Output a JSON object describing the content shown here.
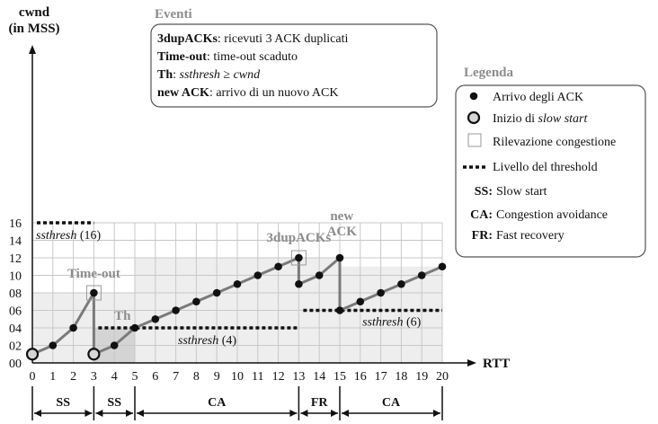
{
  "chart_data": {
    "type": "line",
    "ylabel_lines": [
      "cwnd",
      "(in MSS)"
    ],
    "xlabel": "RTT",
    "x_ticks": [
      "0",
      "1",
      "2",
      "3",
      "4",
      "5",
      "6",
      "7",
      "8",
      "9",
      "10",
      "11",
      "12",
      "13",
      "14",
      "15",
      "16",
      "17",
      "18",
      "19",
      "20"
    ],
    "y_ticks": [
      "00",
      "02",
      "04",
      "06",
      "08",
      "10",
      "12",
      "14",
      "16"
    ],
    "xlim": [
      0,
      20
    ],
    "ylim": [
      0,
      16
    ],
    "grid": true,
    "series_points": [
      {
        "x": 0,
        "y": 1,
        "start": true
      },
      {
        "x": 1,
        "y": 2
      },
      {
        "x": 2,
        "y": 4
      },
      {
        "x": 3,
        "y": 8
      },
      {
        "x": 3,
        "y": 1,
        "start": true
      },
      {
        "x": 4,
        "y": 2
      },
      {
        "x": 5,
        "y": 4
      },
      {
        "x": 6,
        "y": 5
      },
      {
        "x": 7,
        "y": 6
      },
      {
        "x": 8,
        "y": 7
      },
      {
        "x": 9,
        "y": 8
      },
      {
        "x": 10,
        "y": 9
      },
      {
        "x": 11,
        "y": 10
      },
      {
        "x": 12,
        "y": 11
      },
      {
        "x": 13,
        "y": 12
      },
      {
        "x": 13,
        "y": 9
      },
      {
        "x": 14,
        "y": 10
      },
      {
        "x": 15,
        "y": 12
      },
      {
        "x": 15,
        "y": 6
      },
      {
        "x": 16,
        "y": 7
      },
      {
        "x": 17,
        "y": 8
      },
      {
        "x": 18,
        "y": 9
      },
      {
        "x": 19,
        "y": 10
      },
      {
        "x": 20,
        "y": 11
      }
    ],
    "congestion_events": [
      {
        "x": 3,
        "y": 8,
        "label": "Time-out"
      },
      {
        "x": 13,
        "y": 12,
        "label": "3dupACKs"
      }
    ],
    "thresholds": [
      {
        "x_from": 0,
        "x_to": 3,
        "y": 16,
        "label_prefix": "ssthresh",
        "label_value": "(16)"
      },
      {
        "x_from": 3,
        "x_to": 13,
        "y": 4,
        "label_prefix": "ssthresh",
        "label_value": "(4)"
      },
      {
        "x_from": 13,
        "x_to": 20,
        "y": 6,
        "label_prefix": "ssthresh",
        "label_value": "(6)"
      }
    ],
    "annotations": [
      {
        "text": "Th",
        "x": 4.4,
        "y": 4.9
      },
      {
        "text_lines": [
          "new",
          "ACK"
        ],
        "x": 15.1,
        "y": 12.2
      }
    ],
    "phases": [
      {
        "from": 0,
        "to": 3,
        "label": "SS"
      },
      {
        "from": 3,
        "to": 5,
        "label": "SS"
      },
      {
        "from": 5,
        "to": 13,
        "label": "CA"
      },
      {
        "from": 13,
        "to": 15,
        "label": "FR"
      },
      {
        "from": 15,
        "to": 20,
        "label": "CA"
      }
    ],
    "eventi": {
      "title": "Eventi",
      "items": [
        {
          "term": "3dupACKs",
          "desc": ": ricevuti 3 ACK duplicati"
        },
        {
          "term": "Time-out",
          "desc": ": time-out scaduto"
        },
        {
          "term": "Th",
          "desc": ": ssthresh ≥ cwnd"
        },
        {
          "term": "new ACK",
          "desc": ": arrivo di un nuovo ACK"
        }
      ]
    },
    "legenda": {
      "title": "Legenda",
      "items": [
        {
          "marker": "dot",
          "text": "Arrivo degli ACK"
        },
        {
          "marker": "ring",
          "text_plain": "Inizio di ",
          "text_italic": "slow start"
        },
        {
          "marker": "square",
          "text": "Rilevazione congestione"
        },
        {
          "marker": "dash",
          "text": "Livello del threshold"
        },
        {
          "abbr": "SS:",
          "text": "Slow start"
        },
        {
          "abbr": "CA:",
          "text": "Congestion avoidance"
        },
        {
          "abbr": "FR:",
          "text": "Fast recovery"
        }
      ]
    },
    "colors": {
      "line": "#7a7a7a",
      "dot": "#111111",
      "ring_fill": "#d6d6d6",
      "shade_light": "#eeeeee",
      "shade_dark": "#d4d4d4",
      "grid": "#c8c8c8",
      "gray_text": "#8c8c8c"
    }
  }
}
